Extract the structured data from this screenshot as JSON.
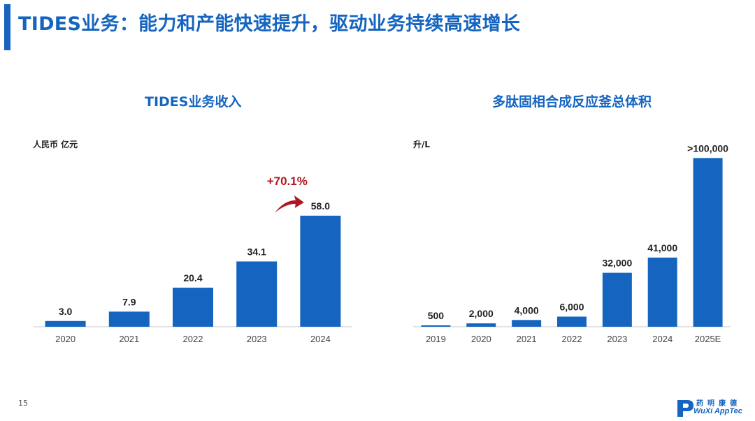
{
  "page": {
    "title": "TIDES业务：能力和产能快速提升，驱动业务持续高速增长",
    "page_number": "15",
    "logo": {
      "name_cn": "药明康德",
      "name_en": "WuXi AppTec"
    },
    "colors": {
      "brand_blue": "#1565C0",
      "bar_blue": "#1565C0",
      "growth_red": "#B0171F"
    }
  },
  "chart_data": [
    {
      "type": "bar",
      "title": "TIDES业务收入",
      "unit": "人民币 亿元",
      "categories": [
        "2020",
        "2021",
        "2022",
        "2023",
        "2024"
      ],
      "values": [
        3.0,
        7.9,
        20.4,
        34.1,
        58.0
      ],
      "value_labels": [
        "3.0",
        "7.9",
        "20.4",
        "34.1",
        "58.0"
      ],
      "ylim": [
        0,
        70
      ],
      "grid": false,
      "annotation": {
        "text": "+70.1%",
        "between": [
          "2023",
          "2024"
        ]
      }
    },
    {
      "type": "bar",
      "title": "多肽固相合成反应釜总体积",
      "unit": "升/L",
      "categories": [
        "2019",
        "2020",
        "2021",
        "2022",
        "2023",
        "2024",
        "2025E"
      ],
      "values": [
        500,
        2000,
        4000,
        6000,
        32000,
        41000,
        100000
      ],
      "value_labels": [
        "500",
        "2,000",
        "4,000",
        "6,000",
        "32,000",
        "41,000",
        ">100,000"
      ],
      "ylim": [
        0,
        120000
      ],
      "grid": false
    }
  ]
}
